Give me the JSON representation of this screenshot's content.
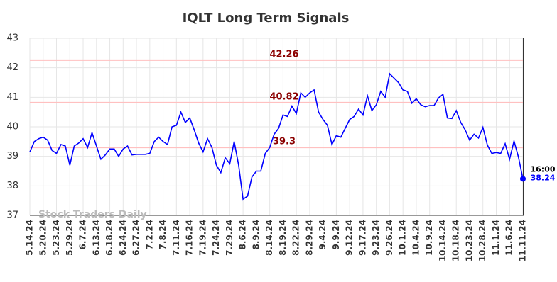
{
  "chart_data": {
    "type": "line",
    "title": "IQLT Long Term Signals",
    "watermark": "Stock Traders Daily",
    "end_time": "16:00",
    "color": "#0000ff",
    "level_color": "#ffc0c0",
    "level_label_color": "#8b0000",
    "levels": [
      42.26,
      40.82,
      39.3
    ],
    "ylim": [
      37,
      43
    ],
    "yticks": [
      37,
      38,
      39,
      40,
      41,
      42,
      43
    ],
    "grid": true,
    "categories": [
      "5.14.24",
      null,
      null,
      "5.20.24",
      null,
      null,
      "5.23.24",
      null,
      null,
      "5.29.24",
      null,
      null,
      "6.7.24",
      null,
      null,
      "6.13.24",
      null,
      null,
      "6.18.24",
      null,
      null,
      "6.24.24",
      null,
      null,
      "6.27.24",
      null,
      null,
      "7.2.24",
      null,
      null,
      "7.8.24",
      null,
      null,
      "7.11.24",
      null,
      null,
      "7.16.24",
      null,
      null,
      "7.19.24",
      null,
      null,
      "7.24.24",
      null,
      null,
      "7.29.24",
      null,
      null,
      "8.6.24",
      null,
      null,
      "8.9.24",
      null,
      null,
      "8.14.24",
      null,
      null,
      "8.19.24",
      null,
      null,
      "8.22.24",
      null,
      null,
      "8.29.24",
      null,
      null,
      "9.4.24",
      null,
      null,
      "9.9.24",
      null,
      null,
      "9.12.24",
      null,
      null,
      "9.17.24",
      null,
      null,
      "9.23.24",
      null,
      null,
      "9.26.24",
      null,
      null,
      "10.1.24",
      null,
      null,
      "10.4.24",
      null,
      null,
      "10.9.24",
      null,
      null,
      "10.14.24",
      null,
      null,
      "10.18.24",
      null,
      null,
      "10.23.24",
      null,
      null,
      "10.28.24",
      null,
      null,
      "11.1.24",
      null,
      null,
      "11.6.24",
      null,
      null,
      "11.11.24"
    ],
    "values": [
      39.15,
      39.5,
      39.6,
      39.65,
      39.55,
      39.2,
      39.1,
      39.4,
      39.35,
      38.7,
      39.35,
      39.45,
      39.6,
      39.3,
      39.8,
      39.35,
      38.9,
      39.05,
      39.25,
      39.25,
      39.0,
      39.25,
      39.35,
      39.05,
      39.07,
      39.07,
      39.07,
      39.1,
      39.5,
      39.65,
      39.5,
      39.4,
      40.0,
      40.05,
      40.5,
      40.15,
      40.3,
      39.9,
      39.45,
      39.15,
      39.6,
      39.3,
      38.7,
      38.45,
      38.95,
      38.75,
      39.5,
      38.7,
      37.55,
      37.65,
      38.3,
      38.5,
      38.5,
      39.1,
      39.3,
      39.75,
      39.95,
      40.4,
      40.35,
      40.7,
      40.45,
      41.15,
      41.0,
      41.15,
      41.25,
      40.5,
      40.25,
      40.05,
      39.4,
      39.7,
      39.65,
      39.95,
      40.25,
      40.35,
      40.6,
      40.4,
      41.05,
      40.55,
      40.75,
      41.2,
      41.0,
      41.8,
      41.65,
      41.5,
      41.25,
      41.2,
      40.8,
      40.95,
      40.75,
      40.68,
      40.72,
      40.72,
      40.98,
      41.1,
      40.3,
      40.28,
      40.55,
      40.15,
      39.9,
      39.55,
      39.75,
      39.62,
      39.98,
      39.38,
      39.1,
      39.13,
      39.1,
      39.43,
      38.9,
      39.52,
      38.98,
      38.24
    ]
  }
}
